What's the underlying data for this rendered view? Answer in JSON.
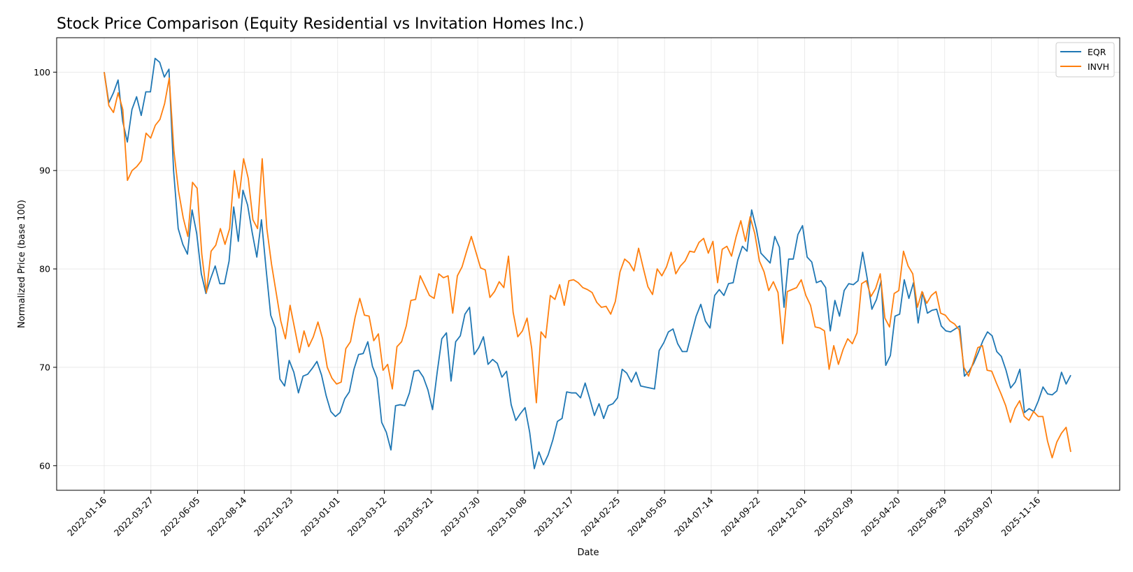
{
  "chart_data": {
    "type": "line",
    "title": "Stock Price Comparison (Equity Residential vs Invitation Homes Inc.)",
    "xlabel": "Date",
    "ylabel": "Normalized Price (base 100)",
    "ylim": [
      57.5,
      103.5
    ],
    "yticks": [
      60,
      70,
      80,
      90,
      100
    ],
    "grid": true,
    "legend_position": "top-right",
    "x_start": "2022-01-16",
    "x_end": "2026-01-04",
    "xtick_labels": [
      "2022-01-16",
      "2022-03-27",
      "2022-06-05",
      "2022-08-14",
      "2022-10-23",
      "2023-01-01",
      "2023-03-12",
      "2023-05-21",
      "2023-07-30",
      "2023-10-08",
      "2023-12-17",
      "2024-02-25",
      "2024-05-05",
      "2024-07-14",
      "2024-09-22",
      "2024-12-01",
      "2025-02-09",
      "2025-04-20",
      "2025-06-29",
      "2025-09-07",
      "2025-11-16"
    ],
    "series": [
      {
        "name": "EQR",
        "color": "#1f77b4",
        "values": [
          100,
          96.9,
          97.9,
          99.2,
          95.0,
          92.9,
          96.2,
          97.5,
          95.6,
          98.0,
          98.0,
          101.4,
          101.0,
          99.5,
          100.3,
          90.0,
          84.1,
          82.5,
          81.5,
          86.0,
          83.6,
          79.5,
          77.5,
          79.0,
          80.3,
          78.5,
          78.5,
          80.8,
          86.3,
          82.8,
          88.0,
          86.5,
          83.7,
          81.2,
          85.0,
          80.0,
          75.3,
          74.0,
          68.8,
          68.1,
          70.7,
          69.5,
          67.4,
          69.1,
          69.3,
          69.9,
          70.6,
          69.2,
          67.1,
          65.5,
          65.0,
          65.4,
          66.8,
          67.5,
          69.8,
          71.3,
          71.4,
          72.6,
          70.1,
          68.9,
          64.4,
          63.4,
          61.6,
          66.1,
          66.2,
          66.1,
          67.4,
          69.6,
          69.7,
          69.0,
          67.7,
          65.7,
          69.5,
          72.9,
          73.5,
          68.6,
          72.6,
          73.2,
          75.4,
          76.1,
          71.3,
          72.0,
          73.1,
          70.3,
          70.8,
          70.4,
          69.0,
          69.6,
          66.2,
          64.6,
          65.3,
          65.9,
          63.4,
          59.7,
          61.4,
          60.1,
          61.1,
          62.6,
          64.5,
          64.8,
          67.5,
          67.4,
          67.4,
          66.9,
          68.4,
          66.8,
          65.1,
          66.3,
          64.8,
          66.1,
          66.3,
          66.9,
          69.8,
          69.4,
          68.5,
          69.5,
          68.1,
          68.0,
          67.9,
          67.8,
          71.7,
          72.5,
          73.6,
          73.9,
          72.4,
          71.6,
          71.6,
          73.4,
          75.2,
          76.4,
          74.7,
          74.0,
          77.3,
          77.9,
          77.3,
          78.5,
          78.6,
          80.9,
          82.3,
          81.8,
          86.0,
          84.1,
          81.6,
          81.1,
          80.6,
          83.3,
          82.2,
          76.1,
          81.0,
          81.0,
          83.5,
          84.4,
          81.2,
          80.7,
          78.6,
          78.8,
          78.1,
          73.7,
          76.8,
          75.2,
          77.8,
          78.5,
          78.4,
          78.8,
          81.7,
          79.0,
          75.9,
          76.9,
          78.8,
          70.2,
          71.2,
          75.2,
          75.4,
          78.9,
          77.0,
          78.6,
          74.5,
          77.6,
          75.5,
          75.8,
          75.9,
          74.2,
          73.7,
          73.6,
          73.9,
          74.2,
          69.1,
          69.6,
          70.4,
          71.5,
          72.7,
          73.6,
          73.2,
          71.6,
          71.1,
          69.7,
          67.9,
          68.5,
          69.8,
          65.4,
          65.8,
          65.5,
          66.6,
          68.0,
          67.3,
          67.2,
          67.6,
          69.5,
          68.3,
          69.2
        ]
      },
      {
        "name": "INVH",
        "color": "#ff7f0e",
        "values": [
          100,
          96.6,
          95.9,
          97.9,
          96.2,
          89.0,
          90.0,
          90.4,
          91.0,
          93.8,
          93.3,
          94.6,
          95.2,
          96.8,
          99.4,
          92.0,
          87.9,
          85.2,
          83.3,
          88.8,
          88.2,
          81.5,
          77.6,
          81.8,
          82.4,
          84.1,
          82.5,
          84.1,
          90.0,
          87.2,
          91.2,
          89.2,
          85.0,
          84.1,
          91.2,
          84.1,
          80.5,
          77.6,
          74.7,
          72.9,
          76.3,
          73.9,
          71.5,
          73.7,
          72.1,
          73.1,
          74.6,
          72.9,
          70.0,
          68.9,
          68.3,
          68.5,
          71.9,
          72.6,
          75.1,
          77.0,
          75.3,
          75.2,
          72.7,
          73.4,
          69.7,
          70.3,
          67.8,
          72.1,
          72.6,
          74.2,
          76.8,
          76.9,
          79.3,
          78.3,
          77.3,
          77.0,
          79.5,
          79.1,
          79.3,
          75.5,
          79.3,
          80.2,
          81.8,
          83.3,
          81.7,
          80.1,
          79.9,
          77.1,
          77.7,
          78.7,
          78.1,
          81.3,
          75.6,
          73.1,
          73.7,
          75.0,
          71.9,
          66.4,
          73.6,
          73.0,
          77.3,
          76.9,
          78.4,
          76.3,
          78.8,
          78.9,
          78.6,
          78.1,
          77.9,
          77.6,
          76.6,
          76.1,
          76.2,
          75.4,
          76.7,
          79.7,
          81.0,
          80.6,
          79.8,
          82.1,
          80.1,
          78.2,
          77.4,
          80.0,
          79.3,
          80.2,
          81.7,
          79.5,
          80.3,
          80.8,
          81.8,
          81.7,
          82.7,
          83.1,
          81.6,
          82.8,
          78.6,
          82.0,
          82.3,
          81.3,
          83.3,
          84.9,
          82.8,
          85.3,
          83.6,
          80.8,
          79.7,
          77.8,
          78.7,
          77.6,
          72.4,
          77.7,
          77.9,
          78.1,
          78.9,
          77.3,
          76.3,
          74.1,
          74.0,
          73.7,
          69.8,
          72.2,
          70.3,
          71.8,
          72.9,
          72.4,
          73.5,
          78.5,
          78.8,
          77.2,
          78.0,
          79.5,
          75.0,
          74.1,
          77.5,
          77.8,
          81.8,
          80.3,
          79.5,
          76.1,
          77.7,
          76.5,
          77.3,
          77.7,
          75.5,
          75.3,
          74.7,
          74.4,
          73.8,
          70.0,
          69.1,
          70.5,
          72.0,
          72.2,
          69.7,
          69.6,
          68.4,
          67.3,
          66.1,
          64.4,
          65.8,
          66.6,
          65.0,
          64.6,
          65.5,
          65.0,
          65.0,
          62.5,
          60.8,
          62.4,
          63.3,
          63.9,
          61.4
        ]
      }
    ]
  }
}
